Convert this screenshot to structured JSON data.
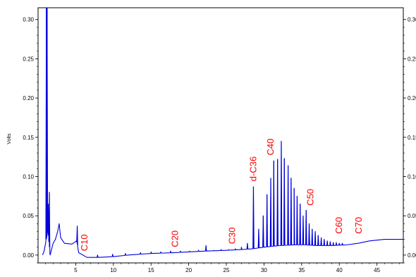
{
  "chart_data": {
    "type": "line",
    "ylabel": "Volts",
    "xlim": [
      0,
      48.5
    ],
    "ylim": [
      -0.01,
      0.315
    ],
    "grid": false,
    "x_tick_labels": [
      "5",
      "10",
      "15",
      "20",
      "25",
      "30",
      "35",
      "40",
      "45"
    ],
    "y_tick_labels": [
      "0.00",
      "0.05",
      "0.10",
      "0.15",
      "0.20",
      "0.25",
      "0.30"
    ],
    "series": [
      {
        "color": "#0000dd",
        "baseline_points": [
          [
            0.6,
            0.0
          ],
          [
            0.8,
            0.005
          ],
          [
            1.0,
            0.015
          ],
          [
            1.3,
            0.03
          ],
          [
            1.6,
            0.0
          ],
          [
            2.0,
            0.015
          ],
          [
            2.3,
            0.02
          ],
          [
            2.6,
            0.03
          ],
          [
            2.8,
            0.04
          ],
          [
            3.0,
            0.022
          ],
          [
            3.5,
            0.015
          ],
          [
            4.5,
            0.014
          ],
          [
            5.1,
            0.018
          ],
          [
            5.4,
            0.003
          ],
          [
            6.5,
            -0.003
          ],
          [
            8.0,
            -0.003
          ],
          [
            10.0,
            -0.002
          ],
          [
            12.0,
            0.0
          ],
          [
            15.0,
            0.002
          ],
          [
            18.0,
            0.003
          ],
          [
            20.0,
            0.004
          ],
          [
            22.0,
            0.005
          ],
          [
            25.0,
            0.006
          ],
          [
            27.0,
            0.007
          ],
          [
            28.5,
            0.008
          ],
          [
            30.0,
            0.01
          ],
          [
            32.0,
            0.012
          ],
          [
            34.0,
            0.013
          ],
          [
            35.5,
            0.013
          ],
          [
            37.0,
            0.012
          ],
          [
            39.0,
            0.012
          ],
          [
            41.0,
            0.013
          ],
          [
            42.5,
            0.015
          ],
          [
            44.0,
            0.018
          ],
          [
            46.0,
            0.02
          ],
          [
            48.5,
            0.02
          ]
        ],
        "spikes": [
          [
            1.1,
            0.315
          ],
          [
            1.2,
            0.315
          ],
          [
            1.35,
            0.065
          ],
          [
            1.5,
            0.08
          ],
          [
            5.2,
            0.037
          ],
          [
            7.9,
            0.0
          ],
          [
            9.9,
            0.001
          ],
          [
            11.6,
            0.002
          ],
          [
            13.6,
            0.003
          ],
          [
            15.0,
            0.004
          ],
          [
            16.3,
            0.004
          ],
          [
            17.6,
            0.005
          ],
          [
            18.9,
            0.005
          ],
          [
            20.1,
            0.005
          ],
          [
            21.3,
            0.006
          ],
          [
            22.3,
            0.012
          ],
          [
            23.3,
            0.006
          ],
          [
            24.3,
            0.007
          ],
          [
            25.3,
            0.007
          ],
          [
            26.2,
            0.008
          ],
          [
            27.0,
            0.01
          ],
          [
            27.8,
            0.015
          ],
          [
            28.6,
            0.087
          ],
          [
            29.3,
            0.033
          ],
          [
            29.9,
            0.05
          ],
          [
            30.4,
            0.077
          ],
          [
            30.9,
            0.098
          ],
          [
            31.3,
            0.12
          ],
          [
            31.8,
            0.122
          ],
          [
            32.3,
            0.145
          ],
          [
            32.7,
            0.123
          ],
          [
            33.2,
            0.114
          ],
          [
            33.6,
            0.098
          ],
          [
            34.0,
            0.085
          ],
          [
            34.4,
            0.075
          ],
          [
            34.8,
            0.065
          ],
          [
            35.2,
            0.05
          ],
          [
            35.6,
            0.057
          ],
          [
            36.0,
            0.04
          ],
          [
            36.4,
            0.033
          ],
          [
            36.8,
            0.03
          ],
          [
            37.2,
            0.025
          ],
          [
            37.6,
            0.022
          ],
          [
            38.0,
            0.02
          ],
          [
            38.4,
            0.018
          ],
          [
            38.8,
            0.017
          ],
          [
            39.2,
            0.016
          ],
          [
            39.6,
            0.016
          ],
          [
            40.0,
            0.015
          ],
          [
            40.4,
            0.015
          ]
        ]
      }
    ],
    "annotations": [
      {
        "text": "C10",
        "x": 6.2,
        "y": 0.005
      },
      {
        "text": "C20",
        "x": 18.2,
        "y": 0.01
      },
      {
        "text": "C30",
        "x": 25.8,
        "y": 0.014
      },
      {
        "text": "d-C36",
        "x": 28.6,
        "y": 0.094
      },
      {
        "text": "C40",
        "x": 30.9,
        "y": 0.127
      },
      {
        "text": "C50",
        "x": 36.2,
        "y": 0.063
      },
      {
        "text": "C60",
        "x": 40.0,
        "y": 0.027
      },
      {
        "text": "C70",
        "x": 42.6,
        "y": 0.027
      }
    ]
  }
}
